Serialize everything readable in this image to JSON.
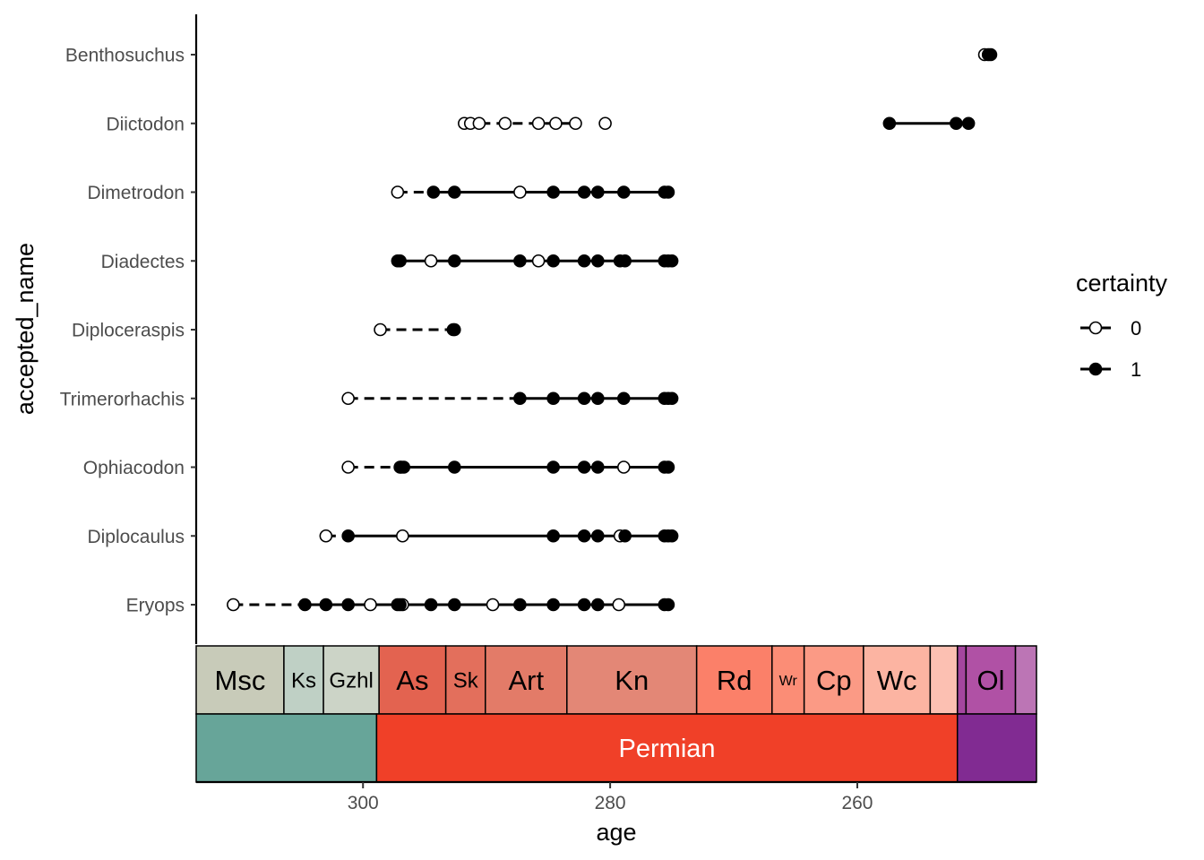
{
  "chart_data": {
    "type": "scatter",
    "xlabel": "age",
    "ylabel": "accepted_name",
    "xlim": [
      313.5,
      245.5
    ],
    "x_reversed": true,
    "x_ticks": [
      300,
      280,
      260
    ],
    "grid": false,
    "legend": {
      "title": "certainty",
      "position": "right",
      "entries": [
        {
          "label": "0",
          "fill": "#ffffff"
        },
        {
          "label": "1",
          "fill": "#000000"
        }
      ]
    },
    "categories": [
      "Benthosuchus",
      "Diictodon",
      "Dimetrodon",
      "Diadectes",
      "Diploceraspis",
      "Trimerorhachis",
      "Ophiacodon",
      "Diplocaulus",
      "Eryops"
    ],
    "taxa": [
      {
        "name": "Benthosuchus",
        "uncertain": [
          249.7
        ],
        "certain": [
          249.4,
          249.2
        ],
        "segments": [
          {
            "from": 249.7,
            "to": 249.2,
            "certainty": 0
          }
        ]
      },
      {
        "name": "Diictodon",
        "uncertain": [
          291.8,
          291.3,
          290.6,
          288.5,
          285.8,
          284.4,
          282.8,
          280.4
        ],
        "certain": [
          257.4,
          252.0,
          251.0
        ],
        "segments": [
          {
            "from": 291.8,
            "to": 282.8,
            "certainty": 0
          },
          {
            "from": 257.4,
            "to": 251.0,
            "certainty": 1
          }
        ]
      },
      {
        "name": "Dimetrodon",
        "uncertain": [
          297.2,
          287.3
        ],
        "certain": [
          294.3,
          292.6,
          284.6,
          282.1,
          281.0,
          278.9,
          275.6,
          275.3
        ],
        "segments": [
          {
            "from": 297.2,
            "to": 294.3,
            "certainty": 0
          },
          {
            "from": 294.3,
            "to": 275.3,
            "certainty": 1
          }
        ]
      },
      {
        "name": "Diadectes",
        "uncertain": [
          294.5,
          285.8
        ],
        "certain": [
          297.2,
          297.0,
          292.6,
          287.3,
          284.6,
          282.1,
          281.0,
          279.2,
          278.8,
          275.6,
          275.3,
          275.0
        ],
        "segments": [
          {
            "from": 297.2,
            "to": 275.0,
            "certainty": 1
          }
        ]
      },
      {
        "name": "Diploceraspis",
        "uncertain": [
          298.6
        ],
        "certain": [
          292.7,
          292.6
        ],
        "segments": [
          {
            "from": 298.6,
            "to": 292.6,
            "certainty": 0
          }
        ]
      },
      {
        "name": "Trimerorhachis",
        "uncertain": [
          301.2
        ],
        "certain": [
          287.3,
          284.6,
          282.1,
          281.0,
          278.9,
          275.6,
          275.3,
          275.0
        ],
        "segments": [
          {
            "from": 301.2,
            "to": 287.3,
            "certainty": 0
          },
          {
            "from": 287.3,
            "to": 275.0,
            "certainty": 1
          }
        ]
      },
      {
        "name": "Ophiacodon",
        "uncertain": [
          301.2,
          297.0,
          278.9
        ],
        "certain": [
          296.9,
          296.7,
          292.6,
          284.6,
          282.1,
          281.0,
          275.6,
          275.3
        ],
        "segments": [
          {
            "from": 301.2,
            "to": 296.9,
            "certainty": 0
          },
          {
            "from": 296.9,
            "to": 275.3,
            "certainty": 1
          }
        ]
      },
      {
        "name": "Diplocaulus",
        "uncertain": [
          303.0,
          296.8,
          279.2
        ],
        "certain": [
          301.2,
          284.6,
          282.1,
          281.0,
          278.8,
          275.6,
          275.3,
          275.0
        ],
        "segments": [
          {
            "from": 303.0,
            "to": 301.2,
            "certainty": 0
          },
          {
            "from": 301.2,
            "to": 275.0,
            "certainty": 1
          }
        ]
      },
      {
        "name": "Eryops",
        "uncertain": [
          310.5,
          299.4,
          296.8,
          289.5,
          279.3
        ],
        "certain": [
          304.7,
          303.0,
          301.2,
          297.2,
          297.0,
          294.5,
          292.6,
          287.3,
          284.6,
          282.1,
          281.0,
          275.6,
          275.3
        ],
        "segments": [
          {
            "from": 310.5,
            "to": 304.7,
            "certainty": 0
          },
          {
            "from": 304.7,
            "to": 275.3,
            "certainty": 1
          }
        ]
      }
    ],
    "timescale": {
      "stages": [
        {
          "label": "Msc",
          "from": 313.5,
          "to": 306.4,
          "color": "#C8CBB9",
          "size": "large"
        },
        {
          "label": "Ks",
          "from": 306.4,
          "to": 303.2,
          "color": "#BFD0C5",
          "size": "medium"
        },
        {
          "label": "Gzhl",
          "from": 303.2,
          "to": 298.7,
          "color": "#CCD4C7",
          "size": "medium"
        },
        {
          "label": "As",
          "from": 298.7,
          "to": 293.3,
          "color": "#E36350",
          "size": "large"
        },
        {
          "label": "Sk",
          "from": 293.3,
          "to": 290.1,
          "color": "#E36F5C",
          "size": "medium"
        },
        {
          "label": "Art",
          "from": 290.1,
          "to": 283.5,
          "color": "#E37B68",
          "size": "large"
        },
        {
          "label": "Kn",
          "from": 283.5,
          "to": 273.0,
          "color": "#E38776",
          "size": "large"
        },
        {
          "label": "Rd",
          "from": 273.0,
          "to": 266.9,
          "color": "#FB8069",
          "size": "large"
        },
        {
          "label": "Wr",
          "from": 266.9,
          "to": 264.3,
          "color": "#FB8D76",
          "size": "small"
        },
        {
          "label": "Cp",
          "from": 264.3,
          "to": 259.5,
          "color": "#FB9A85",
          "size": "large"
        },
        {
          "label": "Wc",
          "from": 259.5,
          "to": 254.1,
          "color": "#FCB4A2",
          "size": "large"
        },
        {
          "label": "",
          "from": 254.1,
          "to": 251.9,
          "color": "#FCC0B2",
          "size": "small"
        },
        {
          "label": "",
          "from": 251.9,
          "to": 251.2,
          "color": "#A4469F",
          "size": "small"
        },
        {
          "label": "Ol",
          "from": 251.2,
          "to": 247.2,
          "color": "#B051A5",
          "size": "large"
        },
        {
          "label": "",
          "from": 247.2,
          "to": 245.5,
          "color": "#BC75B5",
          "size": "small"
        }
      ],
      "periods": [
        {
          "label": "",
          "from": 313.5,
          "to": 298.9,
          "color": "#67A599"
        },
        {
          "label": "Permian",
          "from": 298.9,
          "to": 251.9,
          "color": "#F04028"
        },
        {
          "label": "",
          "from": 251.9,
          "to": 245.5,
          "color": "#812B92"
        }
      ]
    }
  }
}
